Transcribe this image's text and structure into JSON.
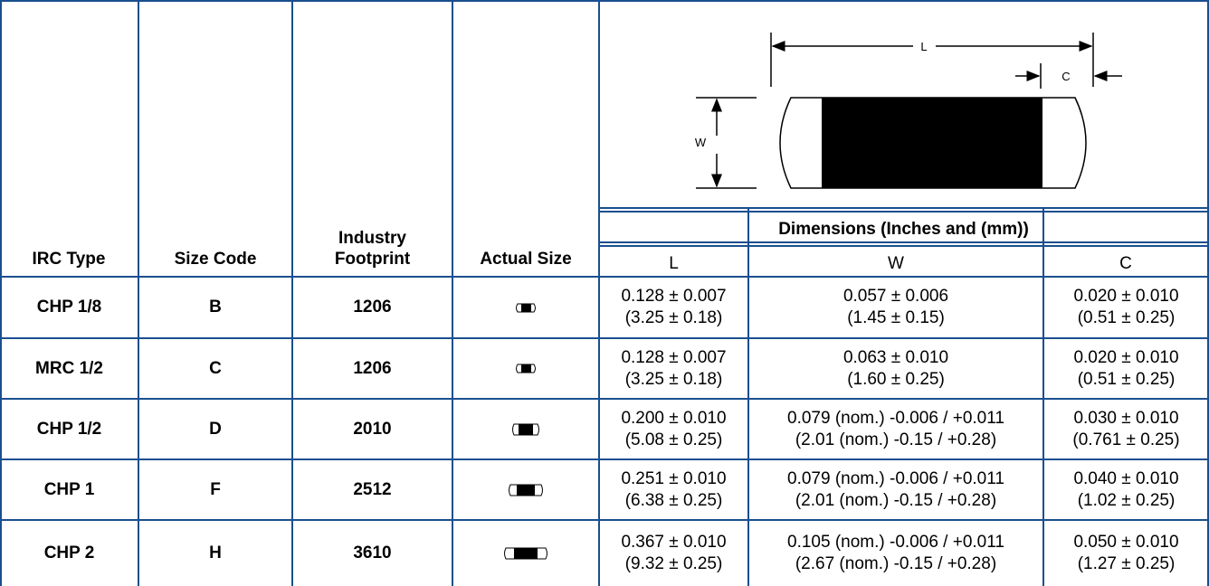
{
  "headers": {
    "irc_type": "IRC Type",
    "size_code": "Size Code",
    "footprint_line1": "Industry",
    "footprint_line2": "Footprint",
    "actual_size": "Actual Size",
    "dimensions": "Dimensions (Inches and (mm))",
    "col_l": "L",
    "col_w": "W",
    "col_c": "C"
  },
  "diagram": {
    "label_l": "L",
    "label_c": "C",
    "label_w": "W"
  },
  "rows": [
    {
      "type": "CHP 1/8",
      "code": "B",
      "footprint": "1206",
      "l1": "0.128 ± 0.007",
      "l2": "(3.25 ± 0.18)",
      "w1": "0.057 ± 0.006",
      "w2": "(1.45 ± 0.15)",
      "c1": "0.020 ± 0.010",
      "c2": "(0.51 ± 0.25)"
    },
    {
      "type": "MRC 1/2",
      "code": "C",
      "footprint": "1206",
      "l1": "0.128 ± 0.007",
      "l2": "(3.25 ± 0.18)",
      "w1": "0.063 ± 0.010",
      "w2": "(1.60 ± 0.25)",
      "c1": "0.020 ± 0.010",
      "c2": "(0.51 ± 0.25)"
    },
    {
      "type": "CHP 1/2",
      "code": "D",
      "footprint": "2010",
      "l1": "0.200 ± 0.010",
      "l2": "(5.08 ± 0.25)",
      "w1": "0.079 (nom.) -0.006 / +0.011",
      "w2": "(2.01 (nom.) -0.15 / +0.28)",
      "c1": "0.030 ± 0.010",
      "c2": "(0.761 ± 0.25)"
    },
    {
      "type": "CHP 1",
      "code": "F",
      "footprint": "2512",
      "l1": "0.251 ± 0.010",
      "l2": "(6.38 ± 0.25)",
      "w1": "0.079 (nom.) -0.006 / +0.011",
      "w2": "(2.01 (nom.) -0.15 / +0.28)",
      "c1": "0.040 ± 0.010",
      "c2": "(1.02 ± 0.25)"
    },
    {
      "type": "CHP 2",
      "code": "H",
      "footprint": "3610",
      "l1": "0.367 ± 0.010",
      "l2": "(9.32 ± 0.25)",
      "w1": "0.105 (nom.) -0.006 / +0.011",
      "w2": "(2.67 (nom.) -0.15 / +0.28)",
      "c1": "0.050 ± 0.010",
      "c2": "(1.27 ± 0.25)"
    }
  ]
}
